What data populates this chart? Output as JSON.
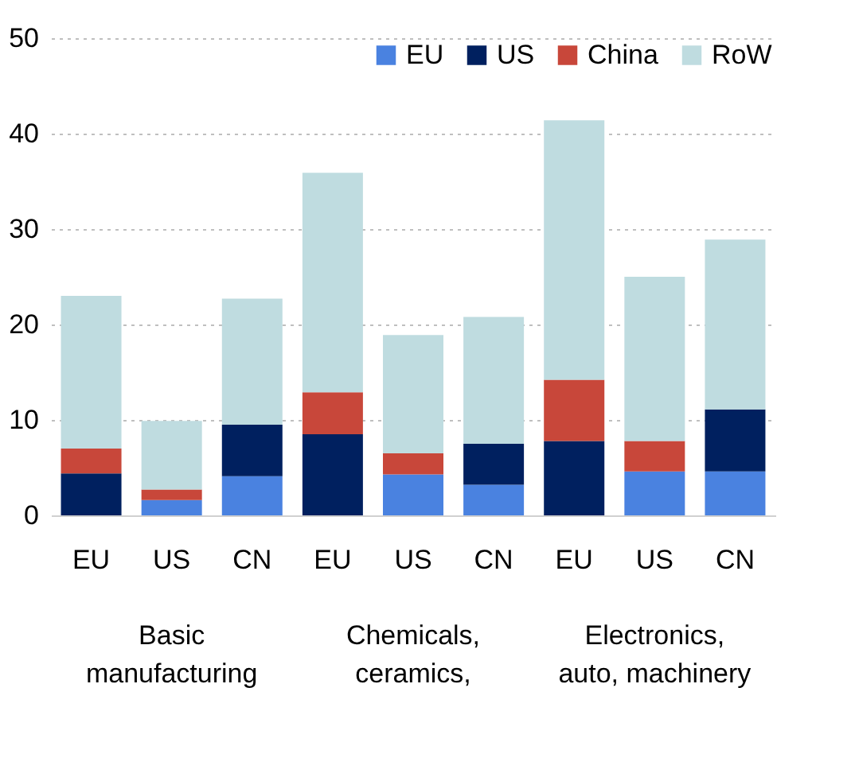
{
  "chart_data": {
    "type": "bar",
    "stacked": true,
    "categories": [
      "EU",
      "US",
      "CN",
      "EU",
      "US",
      "CN",
      "EU",
      "US",
      "CN"
    ],
    "series": [
      {
        "name": "EU",
        "color": "#4a82e0",
        "values": [
          0,
          1.6,
          4.1,
          0,
          4.3,
          3.2,
          0,
          4.6,
          4.6
        ]
      },
      {
        "name": "US",
        "color": "#00205f",
        "values": [
          4.4,
          0,
          5.4,
          8.5,
          0,
          4.3,
          7.8,
          0,
          6.5
        ]
      },
      {
        "name": "China",
        "color": "#c8473a",
        "values": [
          2.6,
          1.1,
          0,
          4.4,
          2.2,
          0,
          6.4,
          3.2,
          0
        ]
      },
      {
        "name": "RoW",
        "color": "#bfdce0",
        "values": [
          16.0,
          7.2,
          13.2,
          23.0,
          12.4,
          13.3,
          27.2,
          17.2,
          17.8
        ]
      }
    ],
    "annotations": [
      "Basic manufacturing",
      "Chemicals, ceramics,",
      "Electronics, auto, machinery"
    ],
    "ylim": [
      0,
      50
    ],
    "yticks": [
      0,
      10,
      20,
      30,
      40,
      50
    ],
    "grid": "y",
    "legend": "top right"
  }
}
